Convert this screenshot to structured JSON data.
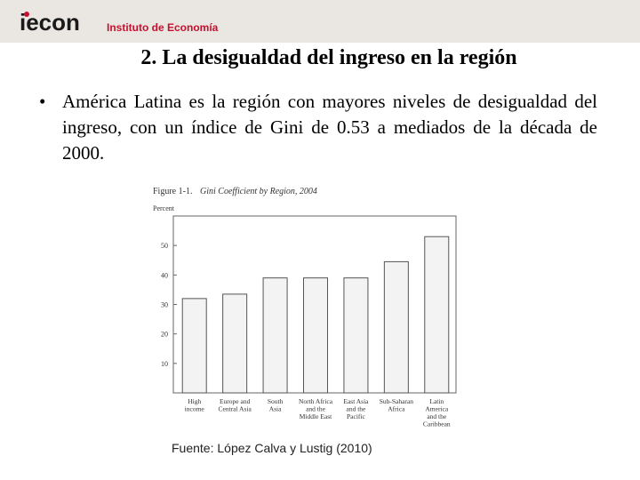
{
  "header": {
    "logo_text": "iecon",
    "institute": "Instituto de Economía"
  },
  "slide": {
    "title": "2. La desigualdad del ingreso en la región",
    "bullet": "América Latina es la región con mayores niveles de desigualdad del ingreso, con un índice de Gini de 0.53 a mediados de la década de 2000.",
    "source": "Fuente: López Calva y Lustig (2010)"
  },
  "chart_data": {
    "type": "bar",
    "figure_label": "Figure 1-1.",
    "title": "Gini Coefficient by Region, 2004",
    "ylabel": "Percent",
    "ylim": [
      0,
      60
    ],
    "yticks": [
      10,
      20,
      30,
      40,
      50
    ],
    "categories": [
      [
        "High",
        "income"
      ],
      [
        "Europe and",
        "Central Asia"
      ],
      [
        "South",
        "Asia"
      ],
      [
        "North Africa",
        "and the",
        "Middle East"
      ],
      [
        "East Asia",
        "and the",
        "Pacific"
      ],
      [
        "Sub-Saharan",
        "Africa"
      ],
      [
        "Latin",
        "America",
        "and the",
        "Caribbean"
      ]
    ],
    "values": [
      32,
      33.5,
      39,
      39,
      39,
      44.5,
      53
    ],
    "bar_color": "#f3f3f3",
    "grid": false
  }
}
